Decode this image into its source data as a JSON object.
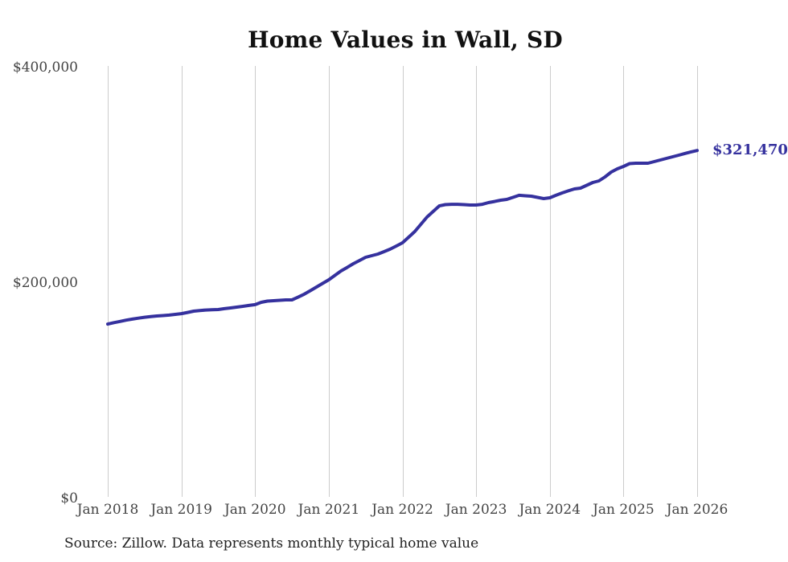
{
  "page": {
    "source_note": "Source: Zillow. Data represents monthly typical home value"
  },
  "chart_data": {
    "type": "line",
    "title": "Home Values in Wall, SD",
    "series_name": "Monthly typical home value",
    "end_label": "$321,470",
    "final_value": 321470,
    "line_color": "#35319e",
    "grid_color": "#cccccc",
    "grid": "vertical-only",
    "legend": "none",
    "ylim": [
      0,
      400000
    ],
    "y_tick_values": [
      0,
      200000,
      400000
    ],
    "y_tick_labels": [
      "$0",
      "$200,000",
      "$400,000"
    ],
    "x_tick_labels": [
      "Jan 2018",
      "Jan 2019",
      "Jan 2020",
      "Jan 2021",
      "Jan 2022",
      "Jan 2023",
      "Jan 2024",
      "Jan 2025",
      "Jan 2026"
    ],
    "x": [
      "Jan 2018",
      "Feb 2018",
      "Mar 2018",
      "Apr 2018",
      "May 2018",
      "Jun 2018",
      "Jul 2018",
      "Aug 2018",
      "Sep 2018",
      "Oct 2018",
      "Nov 2018",
      "Dec 2018",
      "Jan 2019",
      "Feb 2019",
      "Mar 2019",
      "Apr 2019",
      "May 2019",
      "Jun 2019",
      "Jul 2019",
      "Aug 2019",
      "Sep 2019",
      "Oct 2019",
      "Nov 2019",
      "Dec 2019",
      "Jan 2020",
      "Feb 2020",
      "Mar 2020",
      "Apr 2020",
      "May 2020",
      "Jun 2020",
      "Jul 2020",
      "Aug 2020",
      "Sep 2020",
      "Oct 2020",
      "Nov 2020",
      "Dec 2020",
      "Jan 2021",
      "Feb 2021",
      "Mar 2021",
      "Apr 2021",
      "May 2021",
      "Jun 2021",
      "Jul 2021",
      "Aug 2021",
      "Sep 2021",
      "Oct 2021",
      "Nov 2021",
      "Dec 2021",
      "Jan 2022",
      "Feb 2022",
      "Mar 2022",
      "Apr 2022",
      "May 2022",
      "Jun 2022",
      "Jul 2022",
      "Aug 2022",
      "Sep 2022",
      "Oct 2022",
      "Nov 2022",
      "Dec 2022",
      "Jan 2023",
      "Feb 2023",
      "Mar 2023",
      "Apr 2023",
      "May 2023",
      "Jun 2023",
      "Jul 2023",
      "Aug 2023",
      "Sep 2023",
      "Oct 2023",
      "Nov 2023",
      "Dec 2023",
      "Jan 2024",
      "Feb 2024",
      "Mar 2024",
      "Apr 2024",
      "May 2024",
      "Jun 2024",
      "Jul 2024",
      "Aug 2024",
      "Sep 2024",
      "Oct 2024",
      "Nov 2024",
      "Dec 2024",
      "Jan 2025",
      "Feb 2025",
      "Mar 2025",
      "Apr 2025",
      "May 2025",
      "Jun 2025",
      "Jul 2025",
      "Aug 2025",
      "Sep 2025",
      "Oct 2025",
      "Nov 2025",
      "Dec 2025",
      "Jan 2026"
    ],
    "values": [
      160400,
      161700,
      162800,
      164000,
      165000,
      165900,
      166700,
      167300,
      167900,
      168300,
      168700,
      169400,
      170100,
      171200,
      172400,
      173000,
      173400,
      173700,
      173900,
      174700,
      175400,
      176100,
      176900,
      177700,
      178400,
      180600,
      181700,
      182100,
      182500,
      182800,
      182800,
      185400,
      188100,
      191400,
      194800,
      198100,
      201500,
      205600,
      209700,
      213000,
      216400,
      219400,
      222400,
      223900,
      225400,
      227600,
      229900,
      232800,
      235800,
      241000,
      246300,
      253000,
      259700,
      264900,
      270100,
      271300,
      271600,
      271600,
      271300,
      270900,
      270900,
      271600,
      273100,
      274200,
      275400,
      276100,
      278000,
      279900,
      279500,
      279100,
      278000,
      276900,
      277600,
      279900,
      282100,
      284000,
      285800,
      286600,
      289200,
      291800,
      293300,
      297000,
      301500,
      304500,
      306700,
      309300,
      309700,
      309700,
      309700,
      311200,
      312700,
      314200,
      315700,
      317200,
      318700,
      320200,
      321470
    ]
  }
}
